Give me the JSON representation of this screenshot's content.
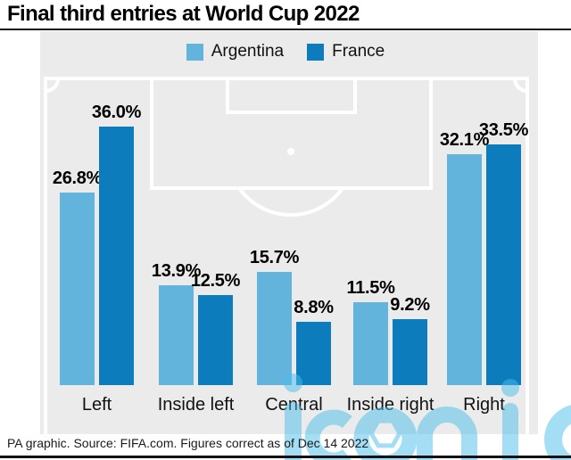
{
  "title": "Final third entries at World Cup 2022",
  "legend": [
    {
      "label": "Argentina",
      "color": "#62b4dd"
    },
    {
      "label": "France",
      "color": "#0d7cbd"
    }
  ],
  "chart_data": {
    "type": "bar",
    "title": "Final third entries at World Cup 2022",
    "categories": [
      "Left",
      "Inside left",
      "Central",
      "Inside right",
      "Right"
    ],
    "series": [
      {
        "name": "Argentina",
        "color": "#62b4dd",
        "values": [
          26.8,
          13.9,
          15.7,
          11.5,
          32.1
        ]
      },
      {
        "name": "France",
        "color": "#0d7cbd",
        "values": [
          36.0,
          12.5,
          8.8,
          9.2,
          33.5
        ]
      }
    ],
    "value_suffix": "%",
    "xlabel": "",
    "ylabel": "",
    "ylim": [
      0,
      37
    ],
    "grid": false,
    "legend_position": "top",
    "background": "half football pitch on light grey"
  },
  "footer": {
    "source_line": "PA graphic. Source: FIFA.com. Figures correct as of Dec 14 2022"
  },
  "watermark": {
    "text": "iconic",
    "color": "#49bfec"
  },
  "colors": {
    "argentina": "#62b4dd",
    "france": "#0d7cbd",
    "pitch_background": "#ebebeb",
    "pitch_lines": "#ffffff",
    "text": "#000000"
  }
}
